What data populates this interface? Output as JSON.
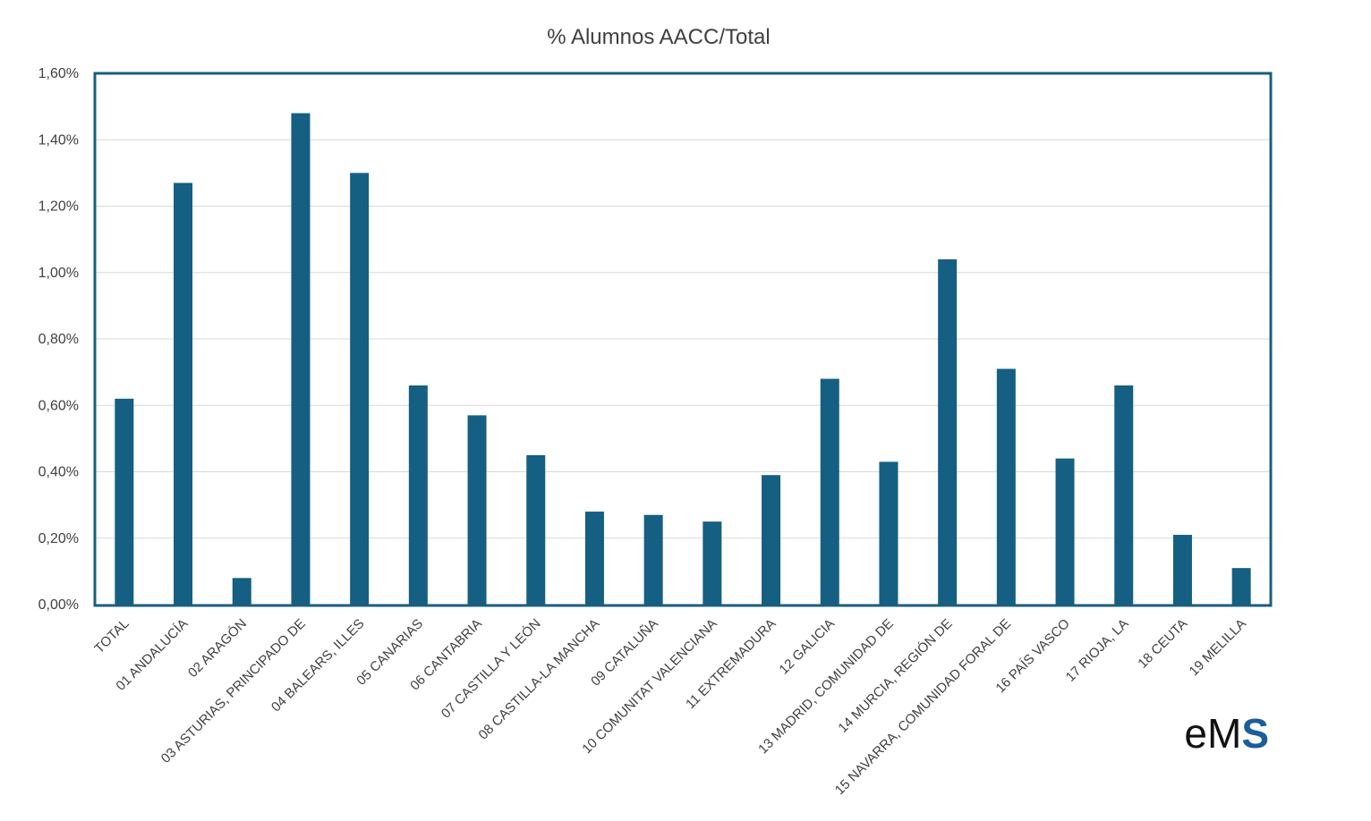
{
  "chart_data": {
    "type": "bar",
    "title": "% Alumnos AACC/Total",
    "xlabel": "",
    "ylabel": "",
    "ylim": [
      0,
      1.6
    ],
    "y_ticks": [
      "0,00%",
      "0,20%",
      "0,40%",
      "0,60%",
      "0,80%",
      "1,00%",
      "1,20%",
      "1,40%",
      "1,60%"
    ],
    "y_tick_values": [
      0,
      0.2,
      0.4,
      0.6,
      0.8,
      1.0,
      1.2,
      1.4,
      1.6
    ],
    "grid": true,
    "legend": "none",
    "bar_color": "#155f82",
    "frame_color": "#1a5e80",
    "categories": [
      "TOTAL",
      "01 ANDALUCÍA",
      "02 ARAGÓN",
      "03 ASTURIAS, PRINCIPADO DE",
      "04 BALEARS, ILLES",
      "05 CANARIAS",
      "06 CANTABRIA",
      "07 CASTILLA Y LEÓN",
      "08 CASTILLA-LA MANCHA",
      "09 CATALUÑA",
      "10 COMUNITAT VALENCIANA",
      "11 EXTREMADURA",
      "12 GALICIA",
      "13 MADRID, COMUNIDAD DE",
      "14 MURCIA, REGIÓN DE",
      "15 NAVARRA, COMUNIDAD FORAL DE",
      "16 PAÍS VASCO",
      "17 RIOJA, LA",
      "18 CEUTA",
      "19 MELILLA"
    ],
    "values": [
      0.62,
      1.27,
      0.08,
      1.48,
      1.3,
      0.66,
      0.57,
      0.45,
      0.28,
      0.27,
      0.25,
      0.39,
      0.68,
      0.43,
      1.04,
      0.71,
      0.44,
      0.66,
      0.21,
      0.11
    ]
  },
  "logo": {
    "lower": "eM",
    "accent": "S",
    "accent_color": "#1a5e9a"
  }
}
